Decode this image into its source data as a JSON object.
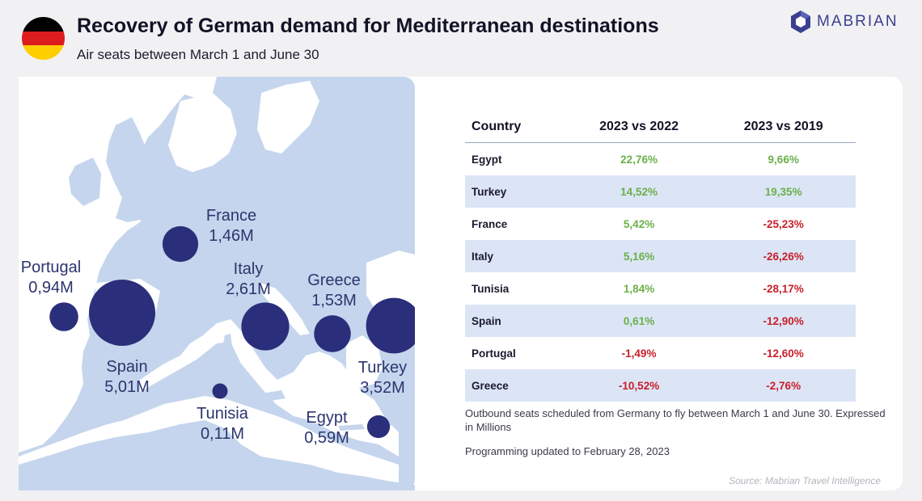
{
  "header": {
    "title": "Recovery of German demand for Mediterranean destinations",
    "subtitle": "Air seats between March 1 and June 30"
  },
  "flag": {
    "colors": [
      "#000000",
      "#dd1d1d",
      "#ffce00"
    ]
  },
  "logo": {
    "text": "MABRIAN",
    "icon": "hexagon-logo-icon",
    "color": "#3a3f8f"
  },
  "colors": {
    "land": "#c5d5ed",
    "sea": "#ffffff",
    "bubble": "#2b2e7a",
    "positive": "#6bb04a",
    "negative": "#c8202a",
    "row_alt": "#dce5f6"
  },
  "chart_data": [
    {
      "type": "bubble-map",
      "title": "Recovery of German demand for Mediterranean destinations",
      "subtitle": "Air seats between March 1 and June 30",
      "unit": "M",
      "points": [
        {
          "name": "Portugal",
          "value": 0.94,
          "label": "0,94M"
        },
        {
          "name": "Spain",
          "value": 5.01,
          "label": "5,01M"
        },
        {
          "name": "France",
          "value": 1.46,
          "label": "1,46M"
        },
        {
          "name": "Italy",
          "value": 2.61,
          "label": "2,61M"
        },
        {
          "name": "Tunisia",
          "value": 0.11,
          "label": "0,11M"
        },
        {
          "name": "Greece",
          "value": 1.53,
          "label": "1,53M"
        },
        {
          "name": "Turkey",
          "value": 3.52,
          "label": "3,52M"
        },
        {
          "name": "Egypt",
          "value": 0.59,
          "label": "0,59M"
        }
      ]
    },
    {
      "type": "table",
      "columns": [
        "Country",
        "2023 vs 2022",
        "2023 vs 2019"
      ],
      "rows": [
        {
          "country": "Egypt",
          "vs2022": "22,76%",
          "vs2019": "9,66%"
        },
        {
          "country": "Turkey",
          "vs2022": "14,52%",
          "vs2019": "19,35%"
        },
        {
          "country": "France",
          "vs2022": "5,42%",
          "vs2019": "-25,23%"
        },
        {
          "country": "Italy",
          "vs2022": "5,16%",
          "vs2019": "-26,26%"
        },
        {
          "country": "Tunisia",
          "vs2022": "1,84%",
          "vs2019": "-28,17%"
        },
        {
          "country": "Spain",
          "vs2022": "0,61%",
          "vs2019": "-12,90%"
        },
        {
          "country": "Portugal",
          "vs2022": "-1,49%",
          "vs2019": "-12,60%"
        },
        {
          "country": "Greece",
          "vs2022": "-10,52%",
          "vs2019": "-2,76%"
        }
      ]
    }
  ],
  "notes": {
    "description": "Outbound seats scheduled from Germany to fly between March 1 and June 30. Expressed in Millions",
    "updated": "Programming updated to February 28, 2023",
    "source": "Source: Mabrian Travel Intelligence"
  }
}
